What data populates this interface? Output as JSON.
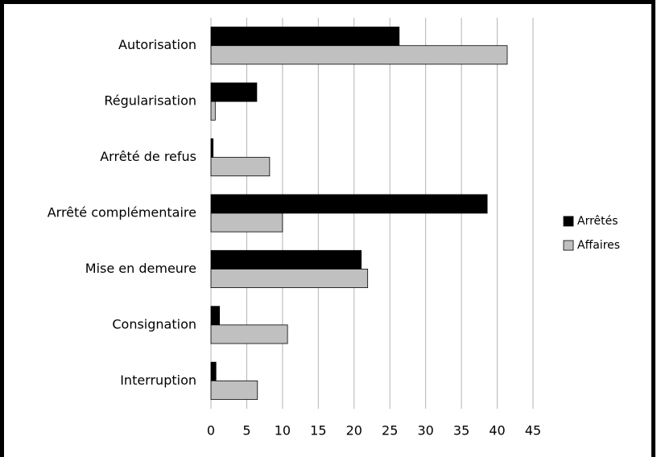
{
  "chart_data": {
    "type": "bar",
    "orientation": "horizontal",
    "categories": [
      "Autorisation",
      "Régularisation",
      "Arrêté de refus",
      "Arrêté complémentaire",
      "Mise en demeure",
      "Consignation",
      "Interruption"
    ],
    "series": [
      {
        "name": "Arrêtés",
        "color": "#000000",
        "values": [
          26.3,
          6.4,
          0.3,
          38.6,
          21.0,
          1.2,
          0.7
        ]
      },
      {
        "name": "Affaires",
        "color": "#c0c0c0",
        "values": [
          41.4,
          0.6,
          8.2,
          10.0,
          21.9,
          10.7,
          6.5
        ]
      }
    ],
    "xlim": [
      0,
      45
    ],
    "xticks": [
      0,
      5,
      10,
      15,
      20,
      25,
      30,
      35,
      40,
      45
    ],
    "grid": true,
    "legend": "right"
  }
}
